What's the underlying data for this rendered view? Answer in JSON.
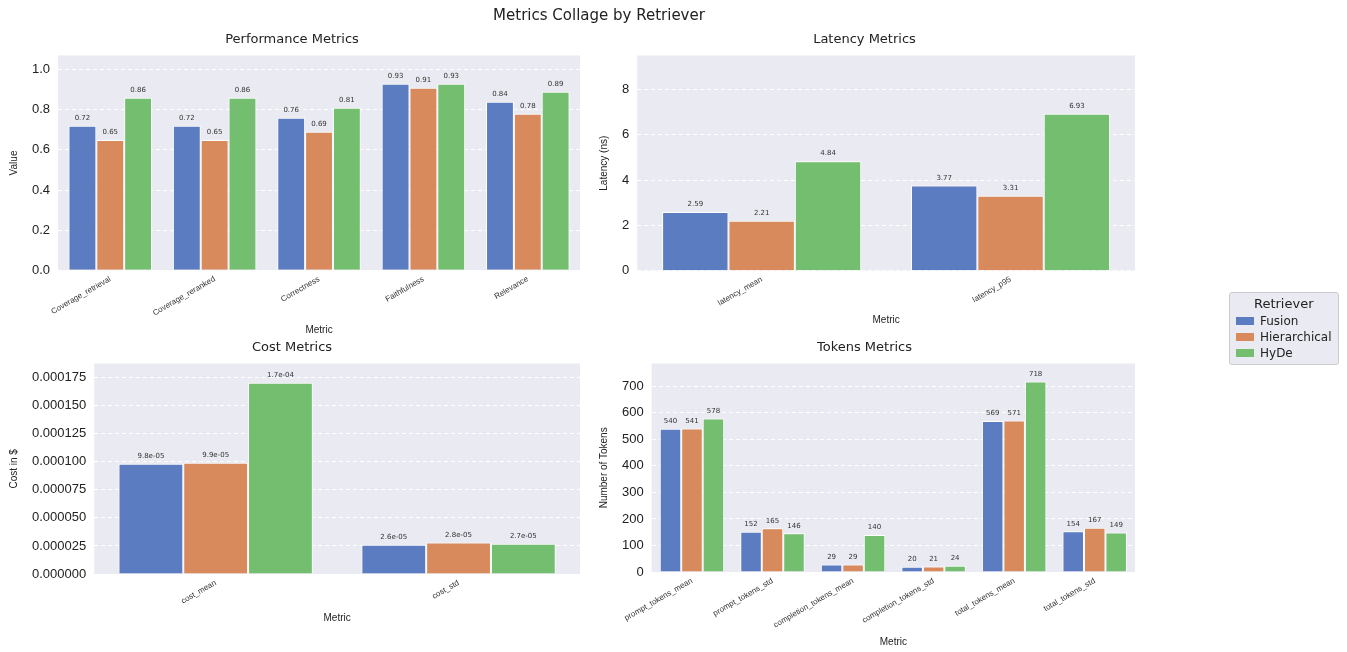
{
  "chart_data": [
    {
      "type": "bar",
      "title": "Performance Metrics",
      "xlabel": "Metric",
      "ylabel": "Value",
      "legend_title": "Retriever",
      "legend": "right",
      "annotations": [
        "Metrics Collage by Retriever"
      ],
      "categories": [
        "Coverage_retrieval",
        "Coverage_reranked",
        "Correctness",
        "Faithfulness",
        "Relevance"
      ],
      "series": [
        {
          "name": "Fusion",
          "color": "#5b7cc0",
          "values": [
            0.72,
            0.72,
            0.76,
            0.93,
            0.84
          ]
        },
        {
          "name": "Hierarchical",
          "color": "#d88a5c",
          "values": [
            0.65,
            0.65,
            0.69,
            0.91,
            0.78
          ]
        },
        {
          "name": "HyDe",
          "color": "#74bf6f",
          "values": [
            0.86,
            0.86,
            0.81,
            0.93,
            0.89
          ]
        }
      ],
      "ylim": [
        0,
        1.07
      ],
      "yticks": [
        {
          "value": 0,
          "label": "0.0"
        },
        {
          "value": 0.2,
          "label": "0.2"
        },
        {
          "value": 0.4,
          "label": "0.4"
        },
        {
          "value": 0.6,
          "label": "0.6"
        },
        {
          "value": 0.8,
          "label": "0.8"
        },
        {
          "value": 1,
          "label": "1.0"
        }
      ],
      "grid": "y",
      "data_labels": true
    },
    {
      "type": "bar",
      "title": "Latency Metrics",
      "xlabel": "Metric",
      "ylabel": "Latency (ns)",
      "categories": [
        "latency_mean",
        "latency_p95"
      ],
      "series": [
        {
          "color": "#5b7cc0",
          "values": [
            2.59,
            3.77
          ]
        },
        {
          "color": "#d88a5c",
          "values": [
            2.21,
            3.31
          ]
        },
        {
          "color": "#74bf6f",
          "values": [
            4.84,
            6.93
          ]
        }
      ],
      "ylim": [
        0,
        9.5
      ],
      "yticks": [
        0,
        2,
        4,
        6,
        8
      ],
      "grid": "y",
      "data_labels": true
    },
    {
      "type": "bar",
      "title": "Cost Metrics",
      "xlabel": "Metric",
      "ylabel": "Cost in $",
      "categories": [
        "cost_mean",
        "cost_std"
      ],
      "series": [
        {
          "color": "#5b7cc0",
          "values": [
            9.8e-05,
            2.6e-05
          ],
          "value_labels": [
            "9.8e-05",
            "2.6e-05"
          ]
        },
        {
          "color": "#d88a5c",
          "values": [
            9.9e-05,
            2.8e-05
          ],
          "value_labels": [
            "9.9e-05",
            "2.8e-05"
          ]
        },
        {
          "color": "#74bf6f",
          "values": [
            0.00017,
            2.7e-05
          ],
          "value_labels": [
            "1.7e-04",
            "2.7e-05"
          ]
        }
      ],
      "ylim": [
        0,
        0.000187
      ],
      "yticks": [
        {
          "value": 0,
          "label": "0.000000"
        },
        {
          "value": 2.5e-05,
          "label": "0.000025"
        },
        {
          "value": 5e-05,
          "label": "0.000050"
        },
        {
          "value": 7.5e-05,
          "label": "0.000075"
        },
        {
          "value": 0.0001,
          "label": "0.000100"
        },
        {
          "value": 0.000125,
          "label": "0.000125"
        },
        {
          "value": 0.00015,
          "label": "0.000150"
        },
        {
          "value": 0.000175,
          "label": "0.000175"
        }
      ],
      "grid": "y"
    },
    {
      "type": "bar",
      "title": "Tokens Metrics",
      "xlabel": "Metric",
      "ylabel": "Number of Tokens",
      "categories": [
        "prompt_tokens_mean",
        "prompt_tokens_std",
        "completion_tokens_mean",
        "completion_tokens_std",
        "total_tokens_mean",
        "total_tokens_std"
      ],
      "series": [
        {
          "color": "#5b7cc0",
          "values": [
            540,
            152,
            29,
            20,
            569,
            154
          ]
        },
        {
          "color": "#d88a5c",
          "values": [
            541,
            165,
            29,
            21,
            571,
            167
          ]
        },
        {
          "color": "#74bf6f",
          "values": [
            578,
            146,
            140,
            24,
            718,
            149
          ]
        }
      ],
      "ylim": [
        0,
        785
      ],
      "yticks": [
        0,
        100,
        200,
        300,
        400,
        500,
        600,
        700
      ],
      "grid": "y",
      "data_labels": true
    }
  ]
}
